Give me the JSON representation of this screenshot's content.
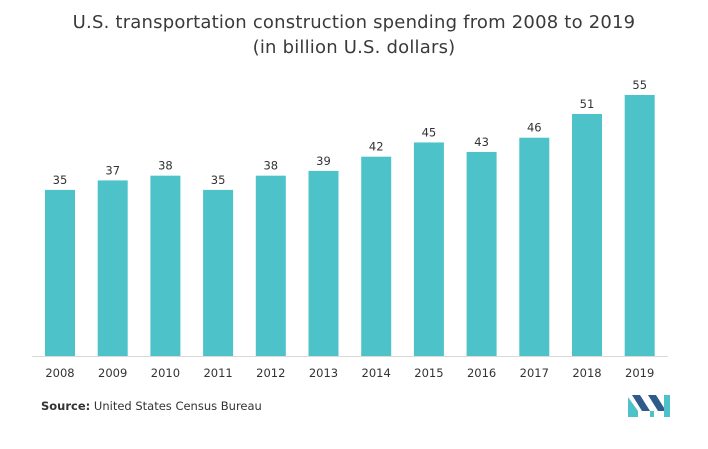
{
  "chart_data": {
    "type": "bar",
    "title": "U.S. transportation construction spending from 2008 to 2019",
    "subtitle": "(in billion U.S. dollars)",
    "categories": [
      "2008",
      "2009",
      "2010",
      "2011",
      "2012",
      "2013",
      "2014",
      "2015",
      "2016",
      "2017",
      "2018",
      "2019"
    ],
    "values": [
      35,
      37,
      38,
      35,
      38,
      39,
      42,
      45,
      43,
      46,
      51,
      55
    ],
    "xlabel": "",
    "ylabel": "",
    "ylim": [
      0,
      55
    ],
    "grid": false,
    "bar_color": "#4dc3c9",
    "label_color": "#333333"
  },
  "source": {
    "label": "Source:",
    "text": "United States Census Bureau"
  },
  "logo": {
    "icon": "mordor-intelligence-logo-icon",
    "colors": [
      "#2e5b8a",
      "#4dc3c9"
    ]
  }
}
